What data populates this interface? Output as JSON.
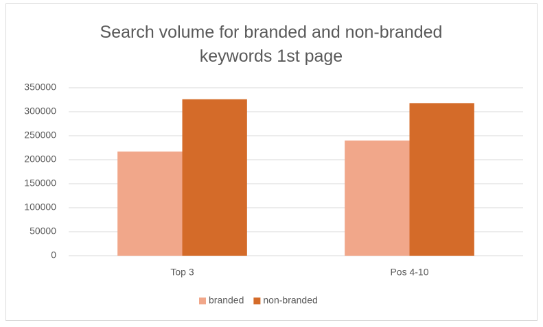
{
  "chart_data": {
    "type": "bar",
    "title": "Search volume for branded and non-branded keywords 1st page",
    "categories": [
      "Top 3",
      "Pos 4-10"
    ],
    "series": [
      {
        "name": "branded",
        "color": "#f1a78a",
        "values": [
          217000,
          240000
        ]
      },
      {
        "name": "non-branded",
        "color": "#d46b29",
        "values": [
          326000,
          318000
        ]
      }
    ],
    "ylim": [
      0,
      350000
    ],
    "yticks": [
      0,
      50000,
      100000,
      150000,
      200000,
      250000,
      300000,
      350000
    ],
    "grid": true,
    "legend": "bottom"
  }
}
